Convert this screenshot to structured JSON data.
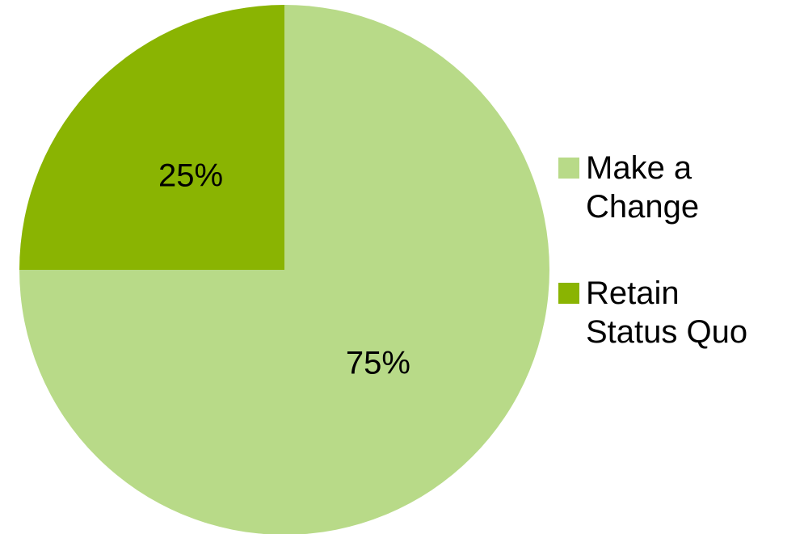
{
  "chart_data": {
    "type": "pie",
    "title": "",
    "categories": [
      "Make a Change",
      "Retain Status Quo"
    ],
    "values": [
      75,
      25
    ],
    "value_labels": [
      "75%",
      "25%"
    ],
    "colors": [
      "#b8da88",
      "#8ab402"
    ],
    "start_angle_deg": 0,
    "direction": "clockwise",
    "legend_position": "right"
  },
  "legend": {
    "items": [
      {
        "lines": [
          "Make a",
          "Change"
        ],
        "color": "#b8da88"
      },
      {
        "lines": [
          "Retain",
          "Status Quo"
        ],
        "color": "#8ab402"
      }
    ]
  }
}
